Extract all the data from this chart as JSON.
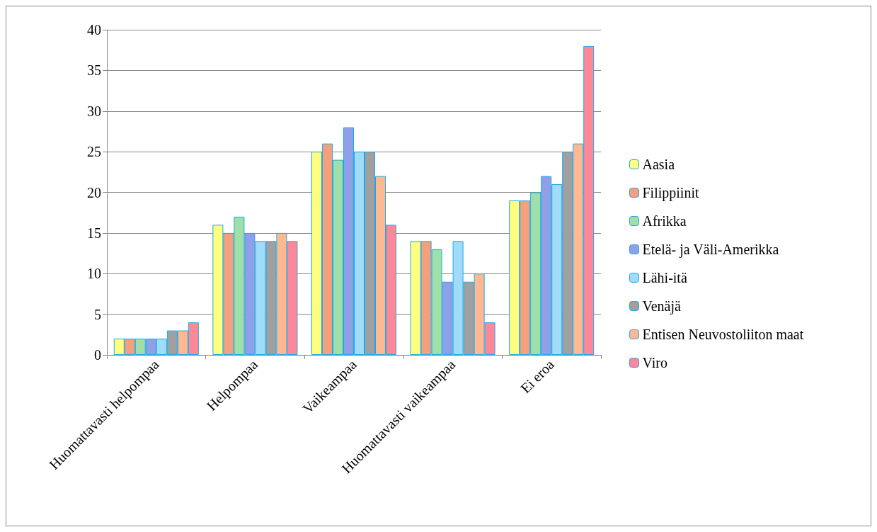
{
  "chart_data": {
    "type": "bar",
    "categories": [
      "Huomattavasti helpompaa",
      "Helpompaa",
      "Vaikeampaa",
      "Huomattavasti vaikeampaa",
      "Ei eroa"
    ],
    "series": [
      {
        "name": "Aasia",
        "color": "#ffff80",
        "values": [
          2,
          16,
          25,
          14,
          19
        ]
      },
      {
        "name": "Filippiinit",
        "color": "#f4a07c",
        "values": [
          2,
          15,
          26,
          14,
          19
        ]
      },
      {
        "name": "Afrikka",
        "color": "#a0e0a8",
        "values": [
          2,
          17,
          24,
          13,
          20
        ]
      },
      {
        "name": "Etelä- ja Väli-Amerikka",
        "color": "#8fa0e8",
        "values": [
          2,
          15,
          28,
          9,
          22
        ]
      },
      {
        "name": "Lähi-itä",
        "color": "#a0dcf8",
        "values": [
          2,
          14,
          25,
          14,
          21
        ]
      },
      {
        "name": "Venäjä",
        "color": "#a0a0a0",
        "values": [
          3,
          14,
          25,
          9,
          25
        ]
      },
      {
        "name": "Entisen Neuvostoliiton maat",
        "color": "#ffb890",
        "values": [
          3,
          15,
          22,
          10,
          26
        ]
      },
      {
        "name": "Viro",
        "color": "#ff8898",
        "values": [
          4,
          14,
          16,
          4,
          38
        ]
      }
    ],
    "ylim": [
      0,
      40
    ],
    "yticks": [
      0,
      5,
      10,
      15,
      20,
      25,
      30,
      35,
      40
    ],
    "grid": "y",
    "legend": "right"
  }
}
